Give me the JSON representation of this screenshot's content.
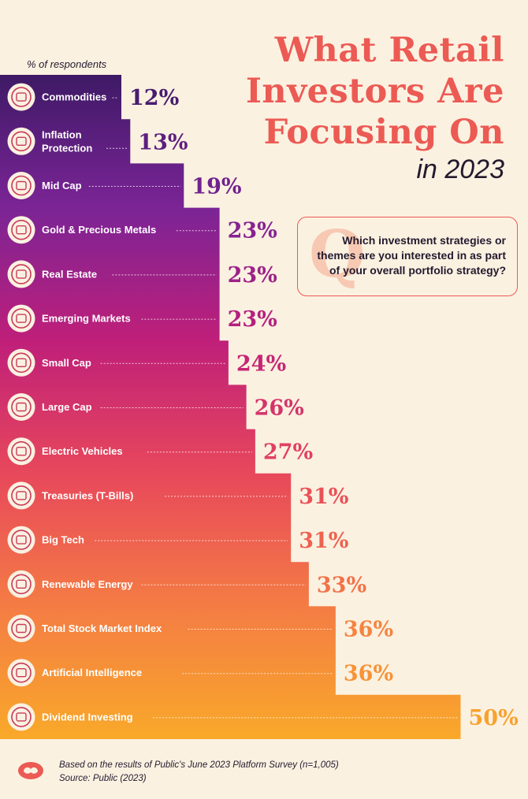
{
  "header": {
    "title_lines": [
      "What Retail",
      "Investors Are",
      "Focusing On"
    ],
    "subtitle": "in 2023"
  },
  "question": {
    "mark": "Q",
    "text": "Which investment strategies or themes are you interested in as part of your overall portfolio strategy?"
  },
  "footer": {
    "note": "Based on the results of Public's June 2023 Platform Survey (n=1,005)",
    "source": "Source: Public (2023)"
  },
  "colors": {
    "gradient": [
      "#3e1a66",
      "#7b2496",
      "#bf1f79",
      "#e8485b",
      "#f47c44",
      "#f9a92a"
    ],
    "title": "#ec5a54",
    "background": "#fbf1e1"
  },
  "chart_data": {
    "type": "bar",
    "orientation": "horizontal",
    "ylabel": "% of respondents",
    "unit": "%",
    "categories": [
      "Commodities",
      "Inflation Protection",
      "Mid Cap",
      "Gold & Precious Metals",
      "Real Estate",
      "Emerging Markets",
      "Small Cap",
      "Large Cap",
      "Electric Vehicles",
      "Treasuries (T-Bills)",
      "Big Tech",
      "Renewable Energy",
      "Total Stock Market Index",
      "Artificial Intelligence",
      "Dividend Investing"
    ],
    "category_lines": [
      [
        "Commodities"
      ],
      [
        "Inflation",
        "Protection"
      ],
      [
        "Mid Cap"
      ],
      [
        "Gold & Precious Metals"
      ],
      [
        "Real Estate"
      ],
      [
        "Emerging Markets"
      ],
      [
        "Small Cap"
      ],
      [
        "Large Cap"
      ],
      [
        "Electric Vehicles"
      ],
      [
        "Treasuries (T-Bills)"
      ],
      [
        "Big Tech"
      ],
      [
        "Renewable Energy"
      ],
      [
        "Total Stock Market Index"
      ],
      [
        "Artificial Intelligence"
      ],
      [
        "Dividend Investing"
      ]
    ],
    "values": [
      12,
      13,
      19,
      23,
      23,
      23,
      24,
      26,
      27,
      31,
      31,
      33,
      36,
      36,
      50
    ],
    "value_labels": [
      "12%",
      "13%",
      "19%",
      "23%",
      "23%",
      "23%",
      "24%",
      "26%",
      "27%",
      "31%",
      "31%",
      "33%",
      "36%",
      "36%",
      "50%"
    ],
    "icons": [
      "commodities-sack-icon",
      "inflation-umbrella-icon",
      "mid-cap-bills-icon",
      "gold-bars-icon",
      "real-estate-house-icon",
      "emerging-markets-globe-icon",
      "small-cap-coins-icon",
      "large-cap-money-bag-icon",
      "electric-vehicle-car-icon",
      "treasury-building-icon",
      "big-tech-laptop-icon",
      "renewable-energy-turbine-icon",
      "stock-market-basket-icon",
      "artificial-intelligence-robot-icon",
      "dividend-investing-city-icon"
    ],
    "sorted": "ascending"
  }
}
